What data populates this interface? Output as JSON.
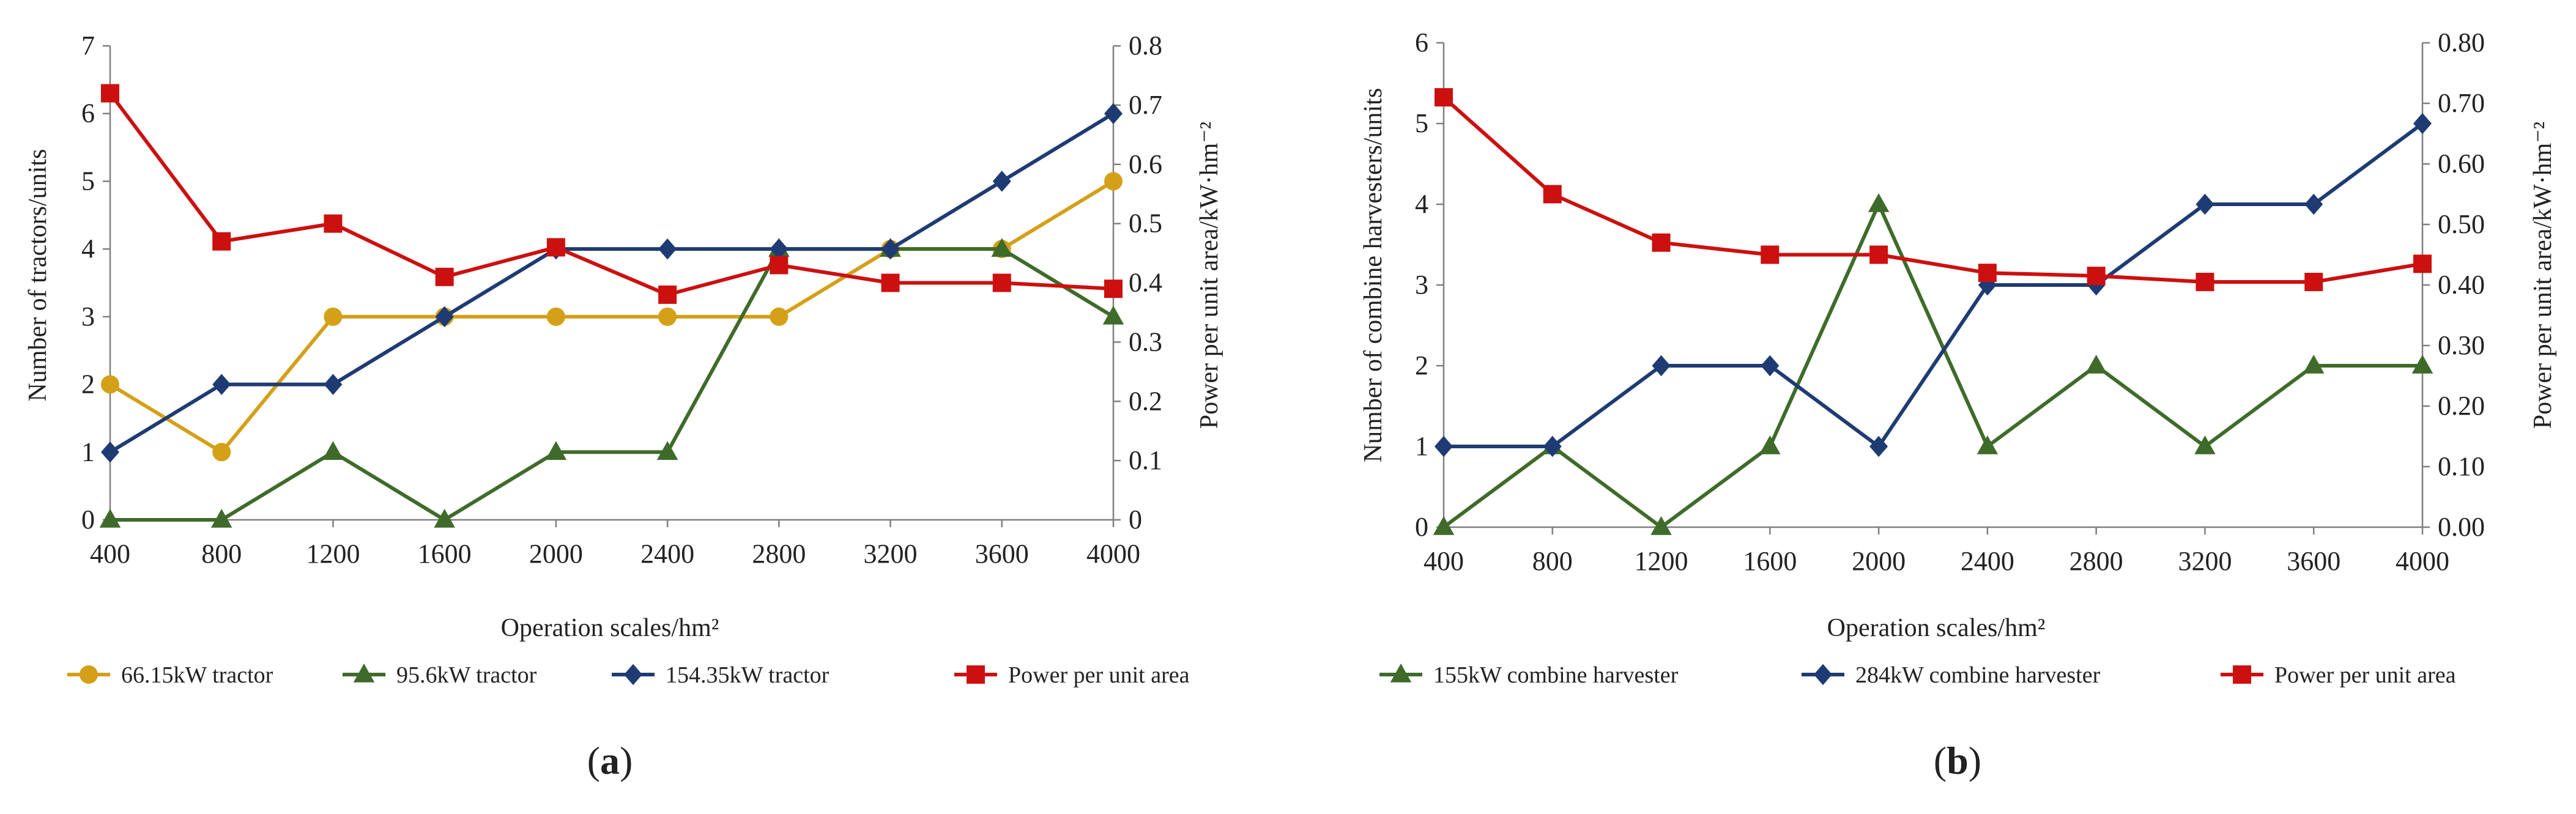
{
  "colors": {
    "gold": "#D4A017",
    "green": "#3F6B2A",
    "blue": "#1F3B73",
    "red": "#CC1010",
    "axis": "#7F7F7F"
  },
  "panels": [
    {
      "label": "(a)",
      "label_parts": [
        "(",
        "a",
        ")"
      ],
      "xlabel": "Operation scales/hm²",
      "ylabel_left": "Number of tractors/units",
      "ylabel_right": "Power per unit area/kW·hm⁻²",
      "left_ticks": [
        "0",
        "1",
        "2",
        "3",
        "4",
        "5",
        "6",
        "7"
      ],
      "right_ticks": [
        "0",
        "0.1",
        "0.2",
        "0.3",
        "0.4",
        "0.5",
        "0.6",
        "0.7",
        "0.8"
      ],
      "x_ticks": [
        "400",
        "800",
        "1200",
        "1600",
        "2000",
        "2400",
        "2800",
        "3200",
        "3600",
        "4000"
      ]
    },
    {
      "label": "(b)",
      "label_parts": [
        "(",
        "b",
        ")"
      ],
      "xlabel": "Operation scales/hm²",
      "ylabel_left": "Number of combine harvesters/units",
      "ylabel_right": "Power per unit area/kW·hm⁻²",
      "left_ticks": [
        "0",
        "1",
        "2",
        "3",
        "4",
        "5",
        "6"
      ],
      "right_ticks": [
        "0.00",
        "0.10",
        "0.20",
        "0.30",
        "0.40",
        "0.50",
        "0.60",
        "0.70",
        "0.80"
      ],
      "x_ticks": [
        "400",
        "800",
        "1200",
        "1600",
        "2000",
        "2400",
        "2800",
        "3200",
        "3600",
        "4000"
      ]
    }
  ],
  "chart_data": [
    {
      "type": "line",
      "title": "",
      "xlabel": "Operation scales/hm²",
      "ylabel": "Number of tractors/units",
      "y2label": "Power per unit area/kW·hm⁻²",
      "x": [
        400,
        800,
        1200,
        1600,
        2000,
        2400,
        2800,
        3200,
        3600,
        4000
      ],
      "ylim": [
        0,
        7
      ],
      "y2lim": [
        0,
        0.8
      ],
      "legend": "bottom",
      "grid": false,
      "series": [
        {
          "name": "66.15kW tractor",
          "axis": "left",
          "color": "#D4A017",
          "marker": "circle",
          "values": [
            2,
            1,
            3,
            3,
            3,
            3,
            3,
            4,
            4,
            5
          ]
        },
        {
          "name": "95.6kW tractor",
          "axis": "left",
          "color": "#3F6B2A",
          "marker": "triangle",
          "values": [
            0,
            0,
            1,
            0,
            1,
            1,
            4,
            4,
            4,
            3
          ]
        },
        {
          "name": "154.35kW tractor",
          "axis": "left",
          "color": "#1F3B73",
          "marker": "diamond",
          "values": [
            1,
            2,
            2,
            3,
            4,
            4,
            4,
            4,
            5,
            6
          ]
        },
        {
          "name": "Power per unit area",
          "axis": "right",
          "color": "#CC1010",
          "marker": "square",
          "values": [
            0.72,
            0.47,
            0.5,
            0.41,
            0.46,
            0.38,
            0.43,
            0.4,
            0.4,
            0.39
          ]
        }
      ]
    },
    {
      "type": "line",
      "title": "",
      "xlabel": "Operation scales/hm²",
      "ylabel": "Number of combine harvesters/units",
      "y2label": "Power per unit area/kW·hm⁻²",
      "x": [
        400,
        800,
        1200,
        1600,
        2000,
        2400,
        2800,
        3200,
        3600,
        4000
      ],
      "ylim": [
        0,
        6
      ],
      "y2lim": [
        0,
        0.8
      ],
      "legend": "bottom",
      "grid": false,
      "series": [
        {
          "name": "155kW combine harvester",
          "axis": "left",
          "color": "#3F6B2A",
          "marker": "triangle",
          "values": [
            0,
            1,
            0,
            1,
            4,
            1,
            2,
            1,
            2,
            2
          ]
        },
        {
          "name": "284kW combine harvester",
          "axis": "left",
          "color": "#1F3B73",
          "marker": "diamond",
          "values": [
            1,
            1,
            2,
            2,
            1,
            3,
            3,
            4,
            4,
            5
          ]
        },
        {
          "name": "Power per unit area",
          "axis": "right",
          "color": "#CC1010",
          "marker": "square",
          "values": [
            0.71,
            0.55,
            0.47,
            0.45,
            0.45,
            0.42,
            0.415,
            0.405,
            0.405,
            0.435
          ]
        }
      ]
    }
  ]
}
